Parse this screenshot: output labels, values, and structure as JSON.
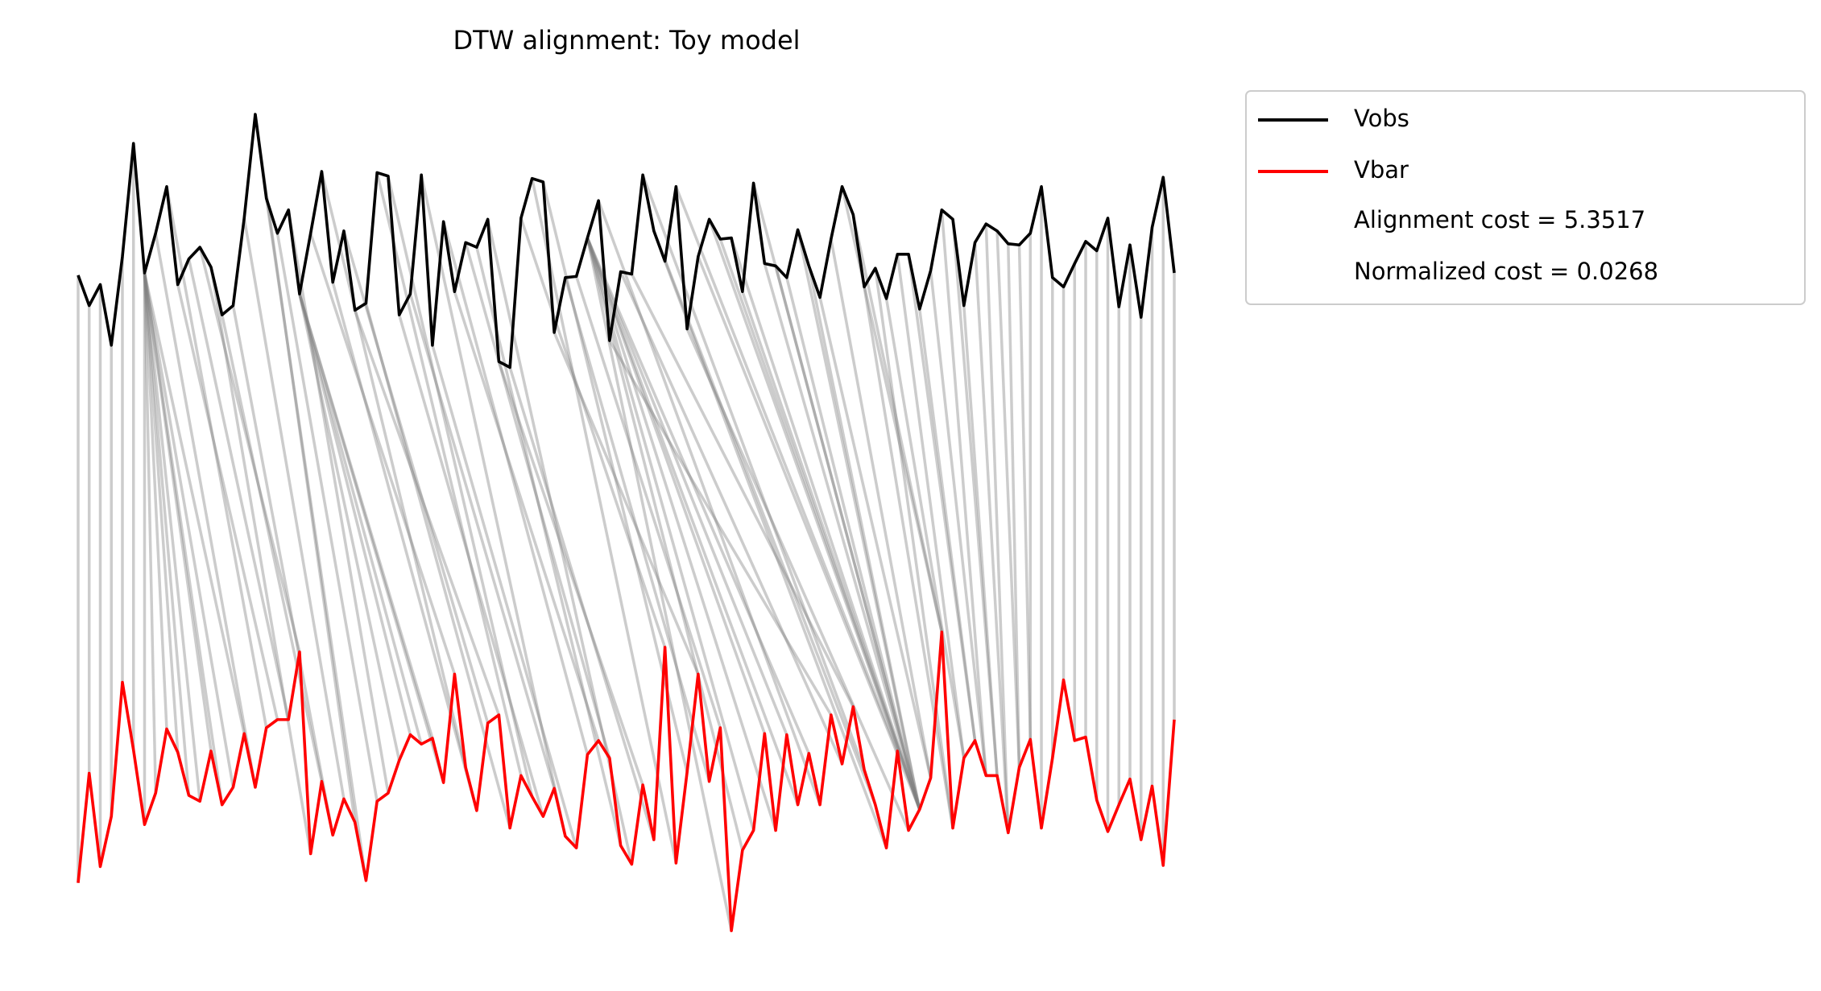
{
  "chart_data": {
    "type": "dtw",
    "title": "DTW alignment: Toy model",
    "series": [
      {
        "name": "Vobs",
        "color": "#000000",
        "values": [
          5.64,
          5.38,
          5.56,
          5.04,
          5.8,
          6.77,
          5.66,
          6.0,
          6.4,
          5.56,
          5.78,
          5.88,
          5.71,
          5.3,
          5.38,
          6.13,
          7.02,
          6.3,
          6.0,
          6.2,
          5.48,
          6.0,
          6.53,
          5.58,
          6.02,
          5.34,
          5.4,
          6.52,
          6.49,
          5.3,
          5.48,
          6.5,
          5.04,
          6.1,
          5.5,
          5.92,
          5.88,
          6.12,
          4.9,
          4.85,
          6.13,
          6.47,
          6.44,
          5.15,
          5.62,
          5.63,
          5.96,
          6.28,
          5.08,
          5.67,
          5.65,
          6.5,
          6.02,
          5.76,
          6.4,
          5.18,
          5.8,
          6.12,
          5.95,
          5.96,
          5.5,
          6.43,
          5.74,
          5.72,
          5.62,
          6.03,
          5.72,
          5.45,
          5.95,
          6.4,
          6.16,
          5.54,
          5.7,
          5.44,
          5.82,
          5.82,
          5.35,
          5.68,
          6.2,
          6.12,
          5.38,
          5.92,
          6.08,
          6.02,
          5.91,
          5.9,
          6.0,
          6.4,
          5.62,
          5.54,
          5.74,
          5.93,
          5.85,
          6.13,
          5.37,
          5.9,
          5.28,
          6.05,
          6.48,
          5.66
        ]
      },
      {
        "name": "Vbar",
        "color": "#ff0000",
        "values": [
          0.43,
          1.37,
          0.57,
          1.0,
          2.15,
          1.57,
          0.93,
          1.2,
          1.75,
          1.55,
          1.18,
          1.13,
          1.56,
          1.1,
          1.25,
          1.71,
          1.25,
          1.76,
          1.83,
          1.83,
          2.41,
          0.68,
          1.3,
          0.84,
          1.15,
          0.95,
          0.45,
          1.13,
          1.2,
          1.48,
          1.7,
          1.62,
          1.67,
          1.29,
          2.22,
          1.42,
          1.05,
          1.8,
          1.87,
          0.9,
          1.35,
          1.17,
          1.0,
          1.24,
          0.83,
          0.73,
          1.53,
          1.65,
          1.5,
          0.75,
          0.59,
          1.27,
          0.8,
          2.45,
          0.6,
          1.38,
          2.22,
          1.3,
          1.76,
          0.02,
          0.71,
          0.88,
          1.71,
          0.88,
          1.7,
          1.1,
          1.54,
          1.1,
          1.87,
          1.45,
          1.94,
          1.4,
          1.1,
          0.73,
          1.56,
          0.88,
          1.06,
          1.33,
          2.58,
          0.9,
          1.5,
          1.65,
          1.35,
          1.35,
          0.86,
          1.42,
          1.66,
          0.9,
          1.5,
          2.17,
          1.65,
          1.68,
          1.14,
          0.87,
          1.1,
          1.32,
          0.8,
          1.26,
          0.58,
          1.83
        ]
      }
    ],
    "alignment": [
      [
        0,
        0
      ],
      [
        1,
        1
      ],
      [
        2,
        2
      ],
      [
        3,
        3
      ],
      [
        4,
        4
      ],
      [
        5,
        5
      ],
      [
        6,
        6
      ],
      [
        6,
        7
      ],
      [
        6,
        8
      ],
      [
        6,
        9
      ],
      [
        6,
        10
      ],
      [
        6,
        11
      ],
      [
        6,
        12
      ],
      [
        6,
        13
      ],
      [
        6,
        14
      ],
      [
        6,
        15
      ],
      [
        7,
        16
      ],
      [
        8,
        17
      ],
      [
        9,
        18
      ],
      [
        10,
        19
      ],
      [
        11,
        20
      ],
      [
        12,
        21
      ],
      [
        13,
        22
      ],
      [
        14,
        23
      ],
      [
        15,
        24
      ],
      [
        16,
        25
      ],
      [
        17,
        26
      ],
      [
        18,
        27
      ],
      [
        19,
        28
      ],
      [
        20,
        29
      ],
      [
        20,
        30
      ],
      [
        20,
        31
      ],
      [
        20,
        32
      ],
      [
        20,
        33
      ],
      [
        21,
        34
      ],
      [
        22,
        35
      ],
      [
        23,
        36
      ],
      [
        24,
        37
      ],
      [
        25,
        38
      ],
      [
        26,
        39
      ],
      [
        27,
        40
      ],
      [
        28,
        41
      ],
      [
        29,
        42
      ],
      [
        30,
        43
      ],
      [
        31,
        44
      ],
      [
        32,
        45
      ],
      [
        33,
        46
      ],
      [
        34,
        47
      ],
      [
        35,
        48
      ],
      [
        36,
        49
      ],
      [
        37,
        50
      ],
      [
        38,
        51
      ],
      [
        39,
        52
      ],
      [
        40,
        53
      ],
      [
        41,
        54
      ],
      [
        42,
        55
      ],
      [
        43,
        56
      ],
      [
        44,
        57
      ],
      [
        45,
        58
      ],
      [
        46,
        59
      ],
      [
        46,
        60
      ],
      [
        46,
        61
      ],
      [
        46,
        62
      ],
      [
        46,
        63
      ],
      [
        46,
        64
      ],
      [
        46,
        65
      ],
      [
        46,
        66
      ],
      [
        47,
        67
      ],
      [
        48,
        68
      ],
      [
        49,
        69
      ],
      [
        50,
        70
      ],
      [
        51,
        71
      ],
      [
        52,
        72
      ],
      [
        53,
        73
      ],
      [
        54,
        74
      ],
      [
        55,
        75
      ],
      [
        56,
        76
      ],
      [
        57,
        76
      ],
      [
        58,
        76
      ],
      [
        59,
        76
      ],
      [
        60,
        76
      ],
      [
        61,
        76
      ],
      [
        62,
        76
      ],
      [
        63,
        76
      ],
      [
        64,
        76
      ],
      [
        65,
        76
      ],
      [
        66,
        76
      ],
      [
        67,
        77
      ],
      [
        68,
        77
      ],
      [
        69,
        78
      ],
      [
        70,
        78
      ],
      [
        71,
        79
      ],
      [
        72,
        79
      ],
      [
        73,
        80
      ],
      [
        74,
        80
      ],
      [
        75,
        81
      ],
      [
        76,
        81
      ],
      [
        77,
        82
      ],
      [
        78,
        82
      ],
      [
        79,
        83
      ],
      [
        80,
        83
      ],
      [
        81,
        84
      ],
      [
        82,
        84
      ],
      [
        83,
        85
      ],
      [
        84,
        85
      ],
      [
        85,
        86
      ],
      [
        86,
        86
      ],
      [
        87,
        87
      ],
      [
        88,
        88
      ],
      [
        89,
        89
      ],
      [
        90,
        90
      ],
      [
        91,
        91
      ],
      [
        92,
        92
      ],
      [
        93,
        93
      ],
      [
        94,
        94
      ],
      [
        95,
        95
      ],
      [
        96,
        96
      ],
      [
        97,
        97
      ],
      [
        98,
        98
      ],
      [
        99,
        99
      ]
    ],
    "annotations": [
      "Alignment cost = 5.3517",
      "Normalized cost = 0.0268"
    ],
    "xlim": [
      0,
      99
    ],
    "ylim": [
      0,
      8
    ],
    "alignment_color": "#808080"
  }
}
